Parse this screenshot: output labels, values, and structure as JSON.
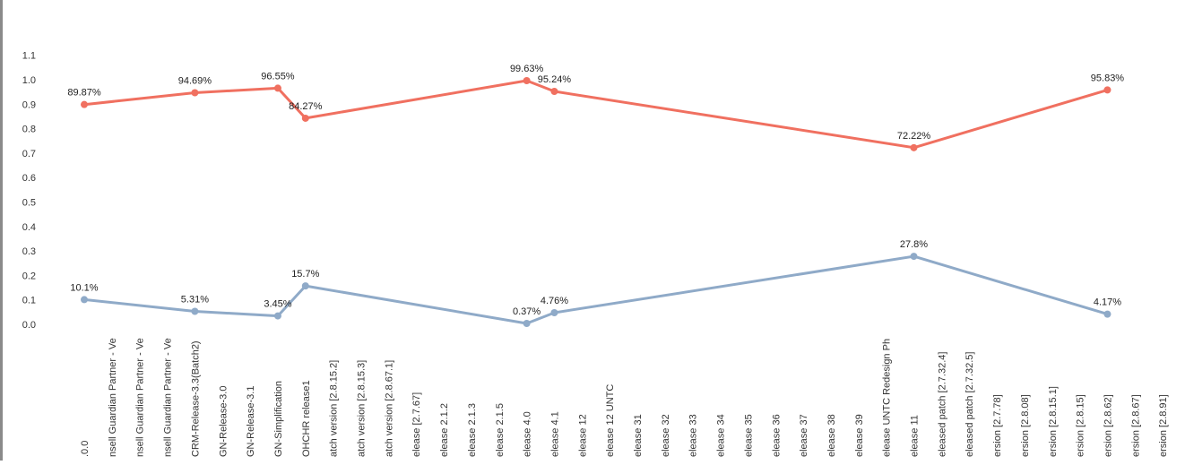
{
  "chart_data": {
    "type": "line",
    "title": "",
    "xlabel": "",
    "ylabel": "",
    "ylim": [
      0,
      1.1
    ],
    "yticks": [
      "0.0",
      "0.1",
      "0.2",
      "0.3",
      "0.4",
      "0.5",
      "0.6",
      "0.7",
      "0.8",
      "0.9",
      "1.0",
      "1.1"
    ],
    "grid": false,
    "legend": "none",
    "categories": [
      ".0.0",
      "nsell Guardian Partner - Ve",
      "nsell Guardian Partner - Ve",
      "nsell Guardian Partner - Ve",
      "CRM-Release-3.3(Batch2)",
      "GN-Release-3.0",
      "GN-Release-3.1",
      "GN-Simplification",
      "OHCHR release1",
      "atch version [2.8.15.2]",
      "atch version [2.8.15.3]",
      "atch version [2.8.67.1]",
      "elease [2.7.67]",
      "elease 2.1.2",
      "elease 2.1.3",
      "elease 2.1.5",
      "elease 4.0",
      "elease 4.1",
      "elease 12",
      "elease 12 UNTC",
      "elease 31",
      "elease 32",
      "elease 33",
      "elease 34",
      "elease 35",
      "elease 36",
      "elease 37",
      "elease 38",
      "elease 39",
      "elease UNTC Redesign Ph",
      "elease 11",
      "eleased patch [2.7.32.4]",
      "eleased patch [2.7.32.5]",
      "ersion [2.7.78]",
      "ersion [2.8.08]",
      "ersion [2.8.15.1]",
      "ersion [2.8.15]",
      "ersion [2.8.62]",
      "ersion [2.8.67]",
      "ersion [2.8.91]"
    ],
    "series": [
      {
        "color": "#f07060",
        "points": [
          {
            "index": 0,
            "value": 0.8987,
            "label": "89.87%"
          },
          {
            "index": 4,
            "value": 0.9469,
            "label": "94.69%"
          },
          {
            "index": 7,
            "value": 0.9655,
            "label": "96.55%"
          },
          {
            "index": 8,
            "value": 0.8427,
            "label": "84.27%"
          },
          {
            "index": 16,
            "value": 0.9963,
            "label": "99.63%"
          },
          {
            "index": 17,
            "value": 0.9524,
            "label": "95.24%"
          },
          {
            "index": 30,
            "value": 0.7222,
            "label": "72.22%"
          },
          {
            "index": 37,
            "value": 0.9583,
            "label": "95.83%"
          }
        ]
      },
      {
        "color": "#8faac8",
        "points": [
          {
            "index": 0,
            "value": 0.101,
            "label": "10.1%"
          },
          {
            "index": 4,
            "value": 0.0531,
            "label": "5.31%"
          },
          {
            "index": 7,
            "value": 0.0345,
            "label": "3.45%"
          },
          {
            "index": 8,
            "value": 0.157,
            "label": "15.7%"
          },
          {
            "index": 16,
            "value": 0.0037,
            "label": "0.37%"
          },
          {
            "index": 17,
            "value": 0.0476,
            "label": "4.76%"
          },
          {
            "index": 30,
            "value": 0.278,
            "label": "27.8%"
          },
          {
            "index": 37,
            "value": 0.0417,
            "label": "4.17%"
          }
        ]
      }
    ]
  }
}
